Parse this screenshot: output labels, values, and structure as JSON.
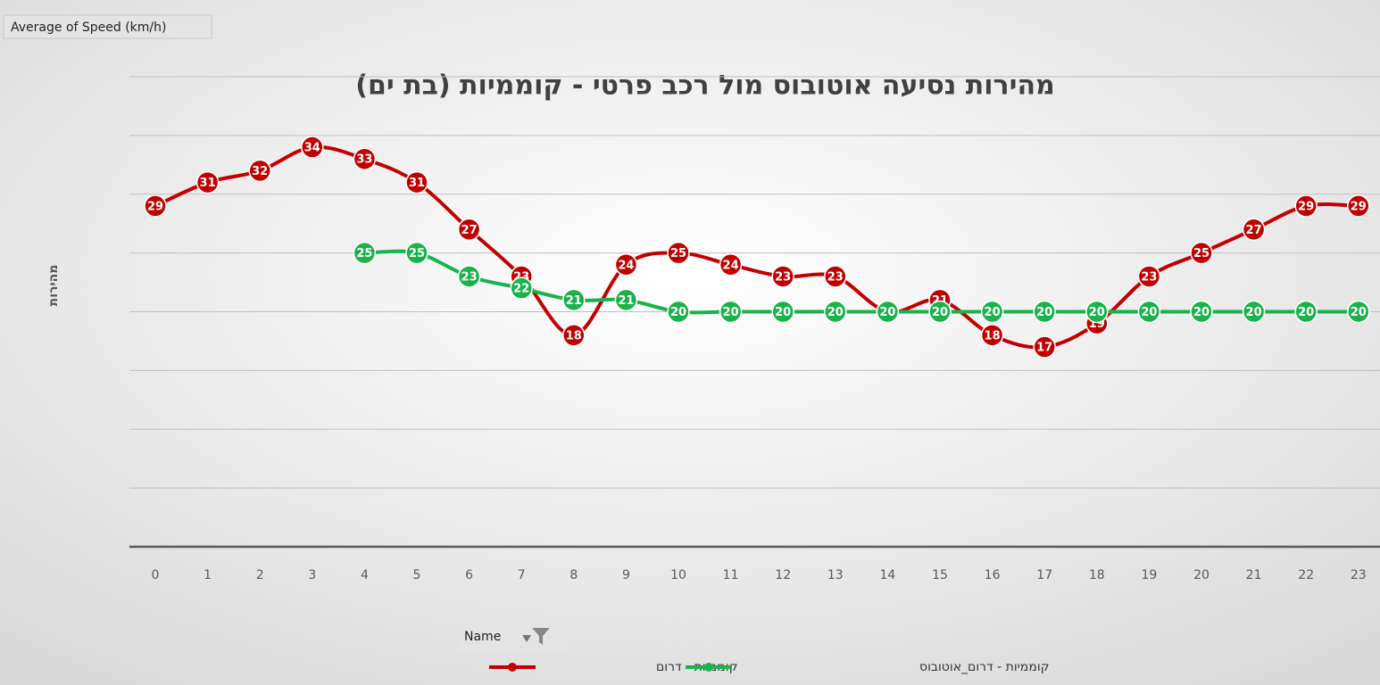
{
  "chart_data": {
    "type": "line",
    "title": "מהירות נסיעה אוטובוס מול רכב פרטי - קוממיות (בת ים)",
    "field_button": "Average of Speed (km/h)",
    "y_label": "מהירות",
    "legend_title": "Name",
    "categories": [
      "0",
      "1",
      "2",
      "3",
      "4",
      "5",
      "6",
      "7",
      "8",
      "9",
      "10",
      "11",
      "12",
      "13",
      "14",
      "15",
      "16",
      "17",
      "18",
      "19",
      "20",
      "21",
      "22",
      "23"
    ],
    "series": [
      {
        "name": "קוממיות - דרום",
        "color": "#c00000",
        "values": [
          29,
          31,
          32,
          34,
          33,
          31,
          27,
          23,
          18,
          24,
          25,
          24,
          23,
          23,
          20,
          21,
          18,
          17,
          19,
          23,
          25,
          27,
          29,
          29
        ]
      },
      {
        "name": "קוממיות - דרום_אוטובוס",
        "color": "#1bb14b",
        "values": [
          null,
          null,
          null,
          null,
          25,
          25,
          23,
          22,
          21,
          21,
          20,
          20,
          20,
          20,
          20,
          20,
          20,
          20,
          20,
          20,
          20,
          20,
          20,
          20
        ]
      }
    ],
    "ylim": [
      0,
      40
    ],
    "yticks": [
      0,
      5,
      10,
      15,
      20,
      25,
      30,
      35,
      40
    ],
    "grid": true,
    "smooth": true
  }
}
